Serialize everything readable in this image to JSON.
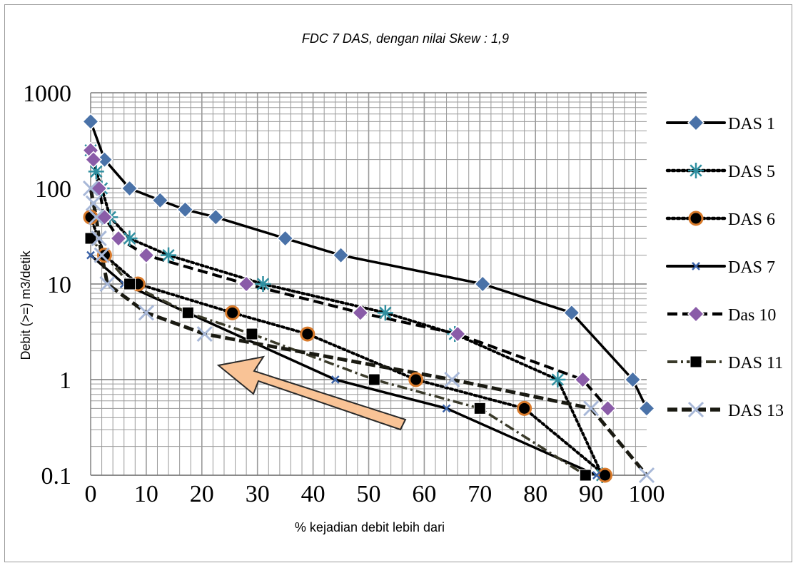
{
  "chart_data": {
    "type": "line",
    "title": "FDC  7 DAS, dengan nilai  Skew : 1,9",
    "xlabel": "%  kejadian debit lebih dari",
    "ylabel": "Debit (>=) m3/detik",
    "xlim": [
      0,
      100
    ],
    "ylim": [
      0.1,
      1000
    ],
    "y_scale": "log",
    "x_ticks": [
      "0",
      "10",
      "20",
      "30",
      "40",
      "50",
      "60",
      "70",
      "80",
      "90",
      "100"
    ],
    "y_ticks": [
      "0.1",
      "1",
      "10",
      "100",
      "1000"
    ],
    "grid": true,
    "legend_position": "right",
    "series": [
      {
        "name": "DAS 1",
        "color": "#000000",
        "marker": "diamond",
        "marker_color": "#4a72a8",
        "dash": "solid",
        "x": [
          0,
          2.5,
          7,
          12.5,
          17,
          22.5,
          35,
          45,
          70.5,
          86.5,
          97.5,
          100
        ],
        "y": [
          500,
          200,
          100,
          75,
          60,
          50,
          30,
          20,
          10,
          5,
          1,
          0.5
        ]
      },
      {
        "name": "DAS 5",
        "color": "#000000",
        "marker": "asterisk",
        "marker_color": "#2f8fa0",
        "dash": "dotted",
        "x": [
          0,
          1,
          2,
          3.5,
          7,
          14,
          31,
          53,
          65.5,
          84,
          92
        ],
        "y": [
          250,
          150,
          100,
          50,
          30,
          20,
          10,
          5,
          3,
          1,
          0.1
        ]
      },
      {
        "name": "DAS 6",
        "color": "#000000",
        "marker": "circle",
        "marker_color": "#d97a2a",
        "dash": "dotted",
        "x": [
          0,
          2.5,
          8.5,
          25.5,
          39,
          58.5,
          78,
          92.5
        ],
        "y": [
          50,
          20,
          10,
          5,
          3,
          1,
          0.5,
          0.1
        ]
      },
      {
        "name": "DAS 7",
        "color": "#000000",
        "marker": "x-small",
        "marker_color": "#3a62a8",
        "dash": "solid",
        "x": [
          0,
          6,
          44,
          64,
          91
        ],
        "y": [
          20,
          10,
          1,
          0.5,
          0.1
        ]
      },
      {
        "name": "Das 10",
        "color": "#000000",
        "marker": "diamond",
        "marker_color": "#8a5ca8",
        "dash": "dashed",
        "x": [
          0,
          0.5,
          1.5,
          2.5,
          5,
          10,
          28,
          48.5,
          66,
          88.5,
          93
        ],
        "y": [
          250,
          200,
          100,
          50,
          30,
          20,
          10,
          5,
          3,
          1,
          0.5
        ]
      },
      {
        "name": "DAS 11",
        "color": "#3a3a2a",
        "marker": "square",
        "marker_color": "#000000",
        "dash": "dashdot",
        "x": [
          0,
          7,
          17.5,
          29,
          51,
          70,
          89
        ],
        "y": [
          30,
          10,
          5,
          3,
          1,
          0.5,
          0.1
        ]
      },
      {
        "name": "DAS 13",
        "color": "#1a1a12",
        "marker": "x-large",
        "marker_color": "#a8b8d8",
        "dash": "dashed-bold",
        "x": [
          0,
          0.5,
          1,
          1.5,
          2,
          3,
          10,
          20.5,
          65,
          90,
          100
        ],
        "y": [
          100,
          70,
          50,
          30,
          20,
          10,
          5,
          3,
          1,
          0.5,
          0.1
        ]
      }
    ]
  },
  "annotation": {
    "type": "arrow",
    "fill": "#f9c396",
    "stroke": "#2a2a2a"
  }
}
